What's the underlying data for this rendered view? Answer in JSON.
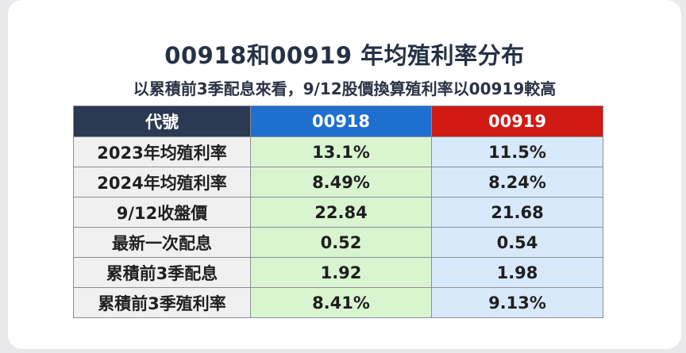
{
  "title": "00918和00919 年均殖利率分布",
  "subtitle": "以累積前3季配息來看，9/12股價換算殖利率以00919較高",
  "table": {
    "headers": [
      "代號",
      "00918",
      "00919"
    ],
    "rows": [
      {
        "label": "2023年均殖利率",
        "a": "13.1%",
        "b": "11.5%"
      },
      {
        "label": "2024年均殖利率",
        "a": "8.49%",
        "b": "8.24%"
      },
      {
        "label": "9/12收盤價",
        "a": "22.84",
        "b": "21.68"
      },
      {
        "label": "最新一次配息",
        "a": "0.52",
        "b": "0.54"
      },
      {
        "label": "累積前3季配息",
        "a": "1.92",
        "b": "1.98"
      },
      {
        "label": "累積前3季殖利率",
        "a": "8.41%",
        "b": "9.13%"
      }
    ]
  },
  "colors": {
    "header_label_bg": "#2b3a52",
    "header_00918_bg": "#1f6fd0",
    "header_00919_bg": "#d11a14",
    "col_00918_bg": "#d8f5d0",
    "col_00919_bg": "#d7e9fb"
  }
}
